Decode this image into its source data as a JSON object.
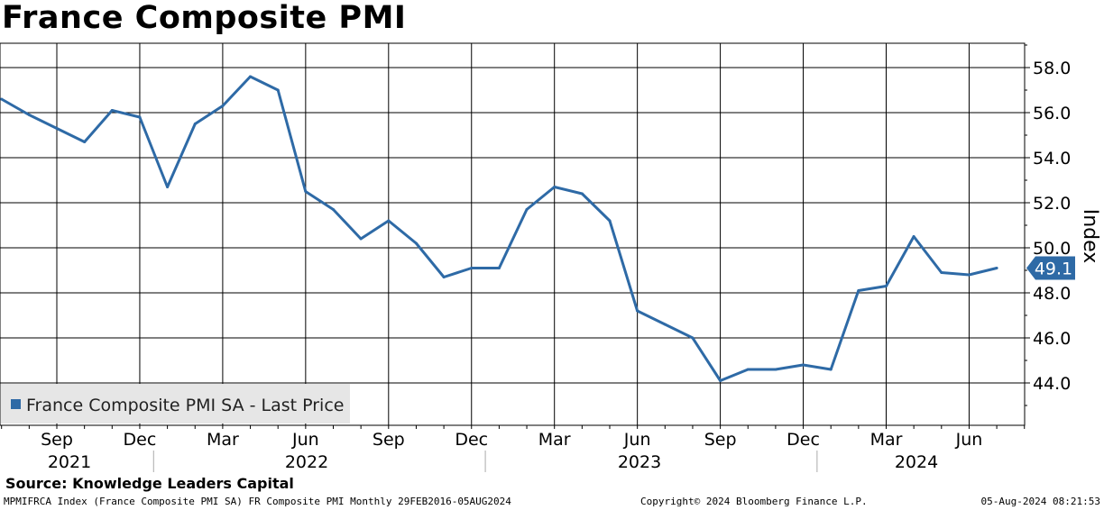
{
  "title": "France Composite PMI",
  "source": "Source: Knowledge Leaders Capital",
  "footer": {
    "left": "MPMIFRCA Index (France Composite PMI SA) FR Composite PMI  Monthly 29FEB2016-05AUG2024",
    "middle": "Copyright© 2024 Bloomberg Finance L.P.",
    "right": "05-Aug-2024 08:21:53"
  },
  "chart_data": {
    "type": "line",
    "ylabel": "Index",
    "ylim": [
      42.0,
      59.0
    ],
    "y_ticks": [
      "58.0",
      "56.0",
      "54.0",
      "52.0",
      "50.0",
      "48.0",
      "46.0",
      "44.0"
    ],
    "month_labels": [
      "Sep",
      "Dec",
      "Mar",
      "Jun",
      "Sep",
      "Dec",
      "Mar",
      "Jun",
      "Sep",
      "Dec",
      "Mar",
      "Jun"
    ],
    "year_labels": [
      "2021",
      "2022",
      "2023",
      "2024"
    ],
    "last_value_label": "49.1",
    "grid": true,
    "legend_position": "bottom-left",
    "colors": {
      "line": "#2e6aa6",
      "last_value_bg": "#2e6aa6"
    },
    "series": [
      {
        "name": "France Composite PMI SA - Last Price",
        "x": [
          "2021-07",
          "2021-08",
          "2021-09",
          "2021-10",
          "2021-11",
          "2021-12",
          "2022-01",
          "2022-02",
          "2022-03",
          "2022-04",
          "2022-05",
          "2022-06",
          "2022-07",
          "2022-08",
          "2022-09",
          "2022-10",
          "2022-11",
          "2022-12",
          "2023-01",
          "2023-02",
          "2023-03",
          "2023-04",
          "2023-05",
          "2023-06",
          "2023-07",
          "2023-08",
          "2023-09",
          "2023-10",
          "2023-11",
          "2023-12",
          "2024-01",
          "2024-02",
          "2024-03",
          "2024-04",
          "2024-05",
          "2024-06",
          "2024-07"
        ],
        "values": [
          56.6,
          55.9,
          55.3,
          54.7,
          56.1,
          55.8,
          52.7,
          55.5,
          56.3,
          57.6,
          57.0,
          52.5,
          51.7,
          50.4,
          51.2,
          50.2,
          48.7,
          49.1,
          49.1,
          51.7,
          52.7,
          52.4,
          51.2,
          47.2,
          46.6,
          46.0,
          44.1,
          44.6,
          44.6,
          44.8,
          44.6,
          48.1,
          48.3,
          50.5,
          48.9,
          48.8,
          49.1
        ]
      }
    ]
  }
}
